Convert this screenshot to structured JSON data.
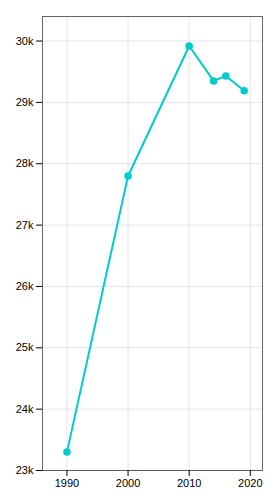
{
  "chart_data": {
    "type": "line",
    "x": [
      1990,
      2000,
      2010,
      2014,
      2016,
      2019
    ],
    "values": [
      23300,
      27800,
      29919,
      29350,
      29430,
      29190
    ],
    "color": "#00CCCC",
    "marker": "circle",
    "xlim": [
      1986,
      2022
    ],
    "xticks": [
      1990,
      2000,
      2010,
      2020
    ],
    "ylim": [
      23000,
      30400
    ],
    "yticks": [
      {
        "value": 23000,
        "label": "23k"
      },
      {
        "value": 24000,
        "label": "24k"
      },
      {
        "value": 25000,
        "label": "25k"
      },
      {
        "value": 26000,
        "label": "26k"
      },
      {
        "value": 27000,
        "label": "27k"
      },
      {
        "value": 28000,
        "label": "28k"
      },
      {
        "value": 29000,
        "label": "29k"
      },
      {
        "value": 30000,
        "label": "30k"
      }
    ],
    "grid": true
  }
}
